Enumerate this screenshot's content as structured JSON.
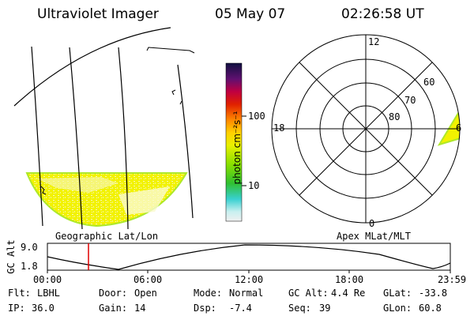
{
  "header": {
    "instrument": "Ultraviolet Imager",
    "date": "05 May 07",
    "time": "02:26:58 UT"
  },
  "geo_panel": {
    "caption": "Geographic Lat/Lon"
  },
  "colorbar": {
    "unit": "photon cm⁻²s⁻¹",
    "tick_labels": [
      "100",
      "10"
    ],
    "scale": "log"
  },
  "polar_panel": {
    "caption": "Apex MLat/MLT",
    "mlt_labels": [
      "12",
      "18",
      "6",
      "0"
    ],
    "mlat_labels": [
      "60",
      "70",
      "80"
    ]
  },
  "orbit_plot": {
    "ylabel": "GC Alt",
    "y_ticks": [
      "9.0",
      "1.8"
    ],
    "x_ticks": [
      "00:00",
      "06:00",
      "12:00",
      "18:00",
      "23:59"
    ],
    "current_time_marker": "02:26:58"
  },
  "info": {
    "row1": [
      {
        "label": "Flt:",
        "value": "LBHL"
      },
      {
        "label": "Door:",
        "value": "Open"
      },
      {
        "label": "Mode:",
        "value": "Normal"
      },
      {
        "label": "GC Alt:",
        "value": "4.4 Re"
      },
      {
        "label": "GLat:",
        "value": "-33.8"
      }
    ],
    "row2": [
      {
        "label": "IP:",
        "value": "36.0"
      },
      {
        "label": "Gain:",
        "value": "14"
      },
      {
        "label": "Dsp:",
        "value": "-7.4"
      },
      {
        "label": "Seq:",
        "value": "39"
      },
      {
        "label": "GLon:",
        "value": "60.8"
      }
    ]
  },
  "colors": {
    "emission_main": "#f2f200",
    "emission_light": "#f6f6a0",
    "emission_edge": "#aee82a",
    "marker": "#e00000"
  }
}
